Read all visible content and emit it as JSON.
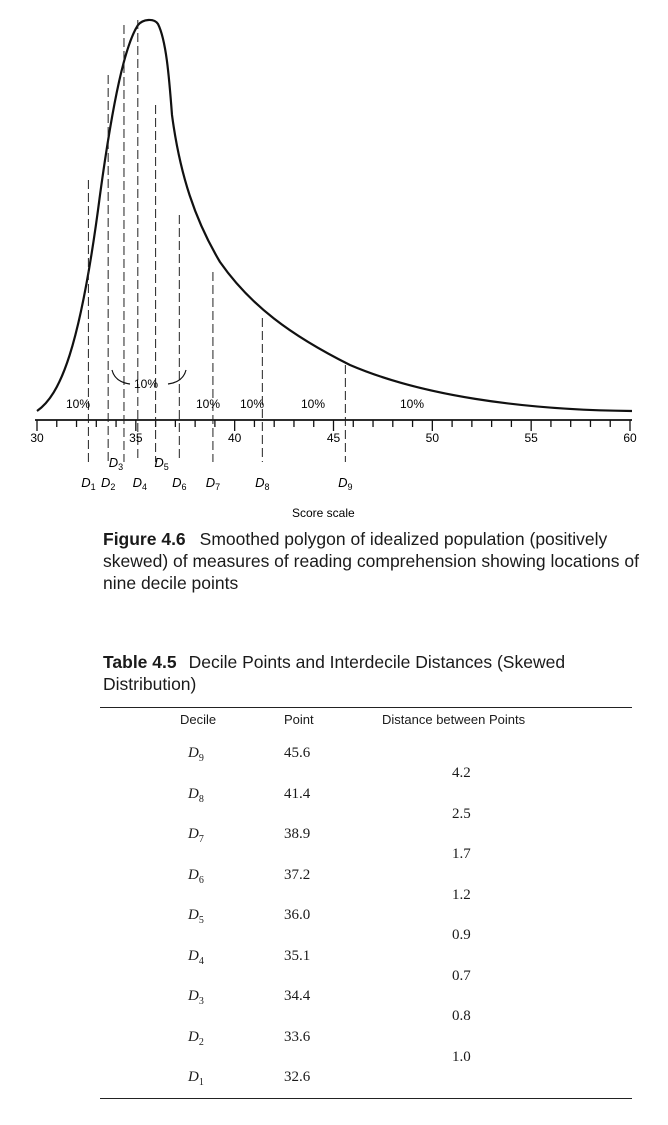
{
  "figure": {
    "percent_labels": [
      "10%",
      "10%",
      "10%",
      "10%",
      "10%",
      "10%"
    ],
    "x_ticks": [
      "30",
      "35",
      "40",
      "45",
      "50",
      "55",
      "60"
    ],
    "decile_labels": [
      {
        "name": "D",
        "sub": "1",
        "score": 32.6
      },
      {
        "name": "D",
        "sub": "2",
        "score": 33.6
      },
      {
        "name": "D",
        "sub": "3",
        "score": 34.4
      },
      {
        "name": "D",
        "sub": "4",
        "score": 35.1
      },
      {
        "name": "D",
        "sub": "5",
        "score": 36.0
      },
      {
        "name": "D",
        "sub": "6",
        "score": 37.2
      },
      {
        "name": "D",
        "sub": "7",
        "score": 38.9
      },
      {
        "name": "D",
        "sub": "8",
        "score": 41.4
      },
      {
        "name": "D",
        "sub": "9",
        "score": 45.6
      }
    ],
    "axis_label": "Score scale",
    "caption_number": "Figure 4.6",
    "caption_text": "Smoothed polygon of idealized population (positively skewed) of measures of reading comprehension showing locations of nine decile points"
  },
  "table": {
    "number": "Table 4.5",
    "title": "Decile Points and Interdecile Distances (Skewed Distribution)",
    "headers": [
      "Decile",
      "Point",
      "Distance between Points"
    ],
    "rows": [
      {
        "decile": "D",
        "sub": "9",
        "point": "45.6"
      },
      {
        "decile": "D",
        "sub": "8",
        "point": "41.4"
      },
      {
        "decile": "D",
        "sub": "7",
        "point": "38.9"
      },
      {
        "decile": "D",
        "sub": "6",
        "point": "37.2"
      },
      {
        "decile": "D",
        "sub": "5",
        "point": "36.0"
      },
      {
        "decile": "D",
        "sub": "4",
        "point": "35.1"
      },
      {
        "decile": "D",
        "sub": "3",
        "point": "34.4"
      },
      {
        "decile": "D",
        "sub": "2",
        "point": "33.6"
      },
      {
        "decile": "D",
        "sub": "1",
        "point": "32.6"
      }
    ],
    "distances": [
      "4.2",
      "2.5",
      "1.7",
      "1.2",
      "0.9",
      "0.7",
      "0.8",
      "1.0"
    ]
  }
}
